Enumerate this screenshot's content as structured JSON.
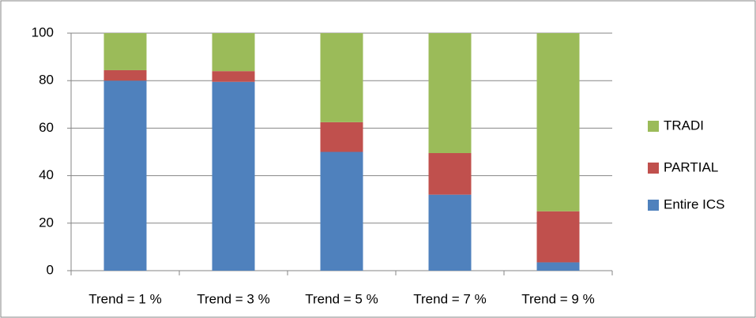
{
  "chart_data": {
    "type": "stacked_bar",
    "categories": [
      "Trend = 1 %",
      "Trend = 3 %",
      "Trend = 5 %",
      "Trend = 7 %",
      "Trend = 9 %"
    ],
    "series": [
      {
        "name": "Entire ICS",
        "color": "#4f81bd",
        "values": [
          80,
          79.5,
          50,
          32,
          3.5
        ]
      },
      {
        "name": "PARTIAL",
        "color": "#c0504d",
        "values": [
          4.4,
          4.5,
          12.5,
          17.5,
          21.5
        ]
      },
      {
        "name": "TRADI",
        "color": "#9bbb59",
        "values": [
          15.6,
          16,
          37.5,
          50.5,
          75
        ]
      }
    ],
    "ylim": [
      0,
      100
    ],
    "yticks": [
      0,
      20,
      40,
      60,
      80,
      100
    ],
    "grid": true,
    "legend": "right"
  }
}
